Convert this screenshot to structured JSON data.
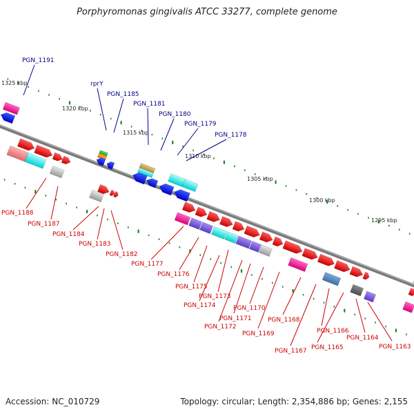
{
  "title": "Porphyromonas gingivalis ATCC 33277, complete genome",
  "footer": {
    "accession": "Accession: NC_010729",
    "summary": "Topology: circular; Length: 2,354,886 bp; Genes: 2,155"
  },
  "colors": {
    "top_label": "#00008b",
    "bottom_label": "#cc0000",
    "backbone": "#7a7a7a",
    "tick": "#1a8a1a"
  },
  "scale": {
    "ticks": [
      {
        "label": "1325 kbp"
      },
      {
        "label": "1320 kbp"
      },
      {
        "label": "1315 kbp"
      },
      {
        "label": "1310 kbp"
      },
      {
        "label": "1305 kbp"
      },
      {
        "label": "1300 kbp"
      },
      {
        "label": "1295 kbp"
      }
    ]
  },
  "genes_top": [
    {
      "label": "PGN_1191"
    },
    {
      "label": "rprY"
    },
    {
      "label": "PGN_1185"
    },
    {
      "label": "PGN_1181"
    },
    {
      "label": "PGN_1180"
    },
    {
      "label": "PGN_1179"
    },
    {
      "label": "PGN_1178"
    }
  ],
  "genes_bottom": [
    {
      "label": "PGN_1188"
    },
    {
      "label": "PGN_1187"
    },
    {
      "label": "PGN_1184"
    },
    {
      "label": "PGN_1183"
    },
    {
      "label": "PGN_1182"
    },
    {
      "label": "PGN_1177"
    },
    {
      "label": "PGN_1176"
    },
    {
      "label": "PGN_1175"
    },
    {
      "label": "PGN_1174"
    },
    {
      "label": "PGN_1173"
    },
    {
      "label": "PGN_1172"
    },
    {
      "label": "PGN_1171"
    },
    {
      "label": "PGN_1170"
    },
    {
      "label": "PGN_1169"
    },
    {
      "label": "PGN_1168"
    },
    {
      "label": "PGN_1167"
    },
    {
      "label": "PGN_1166"
    },
    {
      "label": "PGN_1165"
    },
    {
      "label": "PGN_1164"
    },
    {
      "label": "PGN_1163"
    }
  ]
}
